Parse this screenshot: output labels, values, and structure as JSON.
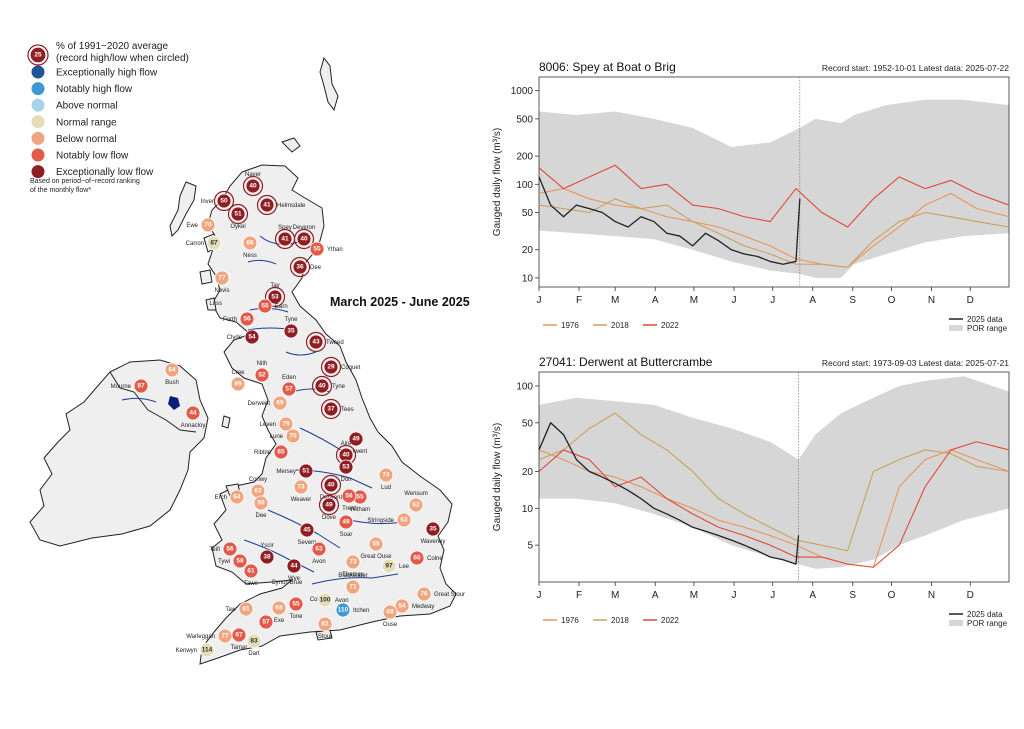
{
  "colors": {
    "exceptionally_high": "#1f5596",
    "notably_high": "#3d98d3",
    "above_normal": "#a8d3ea",
    "normal": "#e6ddb8",
    "below_normal": "#f1a57f",
    "notably_low": "#e35a4a",
    "exceptionally_low": "#8f1d22",
    "land": "#efefef",
    "river": "#1d3b93",
    "por": "#d6d6d6",
    "line_2025": "#222222",
    "line_1976": "#e9955a",
    "line_2018": "#c9a15e",
    "line_2022": "#e04a3a"
  },
  "map": {
    "title": "March 2025 - June 2025",
    "legend": {
      "pct_label_line1": "% of 1991−2020 average",
      "pct_label_line2": "(record high/low when circled)",
      "pct_badge": "25",
      "items": [
        {
          "key": "exceptionally_high",
          "label": "Exceptionally high flow"
        },
        {
          "key": "notably_high",
          "label": "Notably high flow"
        },
        {
          "key": "above_normal",
          "label": "Above normal"
        },
        {
          "key": "normal",
          "label": "Normal range"
        },
        {
          "key": "below_normal",
          "label": "Below normal"
        },
        {
          "key": "notably_low",
          "label": "Notably low flow"
        },
        {
          "key": "exceptionally_low",
          "label": "Exceptionally low flow"
        }
      ],
      "footnote_line1": "Based on period−of−record ranking",
      "footnote_line2": "of the monthly flow*"
    },
    "stations": [
      {
        "name": "Naver",
        "value": "40",
        "cls": "exceptionally_low",
        "rec": true
      },
      {
        "name": "Inver",
        "value": "50",
        "cls": "exceptionally_low",
        "rec": true
      },
      {
        "name": "Helmsdale",
        "value": "41",
        "cls": "exceptionally_low",
        "rec": true
      },
      {
        "name": "Oykel",
        "value": "51",
        "cls": "exceptionally_low",
        "rec": true
      },
      {
        "name": "Ewe",
        "value": "70",
        "cls": "below_normal",
        "rec": false
      },
      {
        "name": "Carron",
        "value": "87",
        "cls": "normal",
        "rec": false
      },
      {
        "name": "Spey",
        "value": "41",
        "cls": "exceptionally_low",
        "rec": true
      },
      {
        "name": "Deveron",
        "value": "40",
        "cls": "exceptionally_low",
        "rec": true
      },
      {
        "name": "Ythan",
        "value": "55",
        "cls": "notably_low",
        "rec": false
      },
      {
        "name": "Ness",
        "value": "66",
        "cls": "below_normal",
        "rec": false
      },
      {
        "name": "Dee",
        "value": "36",
        "cls": "exceptionally_low",
        "rec": true
      },
      {
        "name": "Nevis",
        "value": "77",
        "cls": "below_normal",
        "rec": false
      },
      {
        "name": "Tay",
        "value": "53",
        "cls": "exceptionally_low",
        "rec": true
      },
      {
        "name": "Luss",
        "value": "",
        "cls": "",
        "rec": false
      },
      {
        "name": "Forth",
        "value": "56",
        "cls": "notably_low",
        "rec": false
      },
      {
        "name": "Earn",
        "value": "55",
        "cls": "notably_low",
        "rec": false
      },
      {
        "name": "Tyne",
        "value": "35",
        "cls": "exceptionally_low",
        "rec": false
      },
      {
        "name": "Clyde",
        "value": "54",
        "cls": "exceptionally_low",
        "rec": false
      },
      {
        "name": "Tweed",
        "value": "43",
        "cls": "exceptionally_low",
        "rec": true
      },
      {
        "name": "Coquet",
        "value": "29",
        "cls": "exceptionally_low",
        "rec": true
      },
      {
        "name": "Tyne",
        "value": "40",
        "cls": "exceptionally_low",
        "rec": true
      },
      {
        "name": "Tees",
        "value": "37",
        "cls": "exceptionally_low",
        "rec": true
      },
      {
        "name": "Cree",
        "value": "69",
        "cls": "below_normal",
        "rec": false
      },
      {
        "name": "Nith",
        "value": "52",
        "cls": "notably_low",
        "rec": false
      },
      {
        "name": "Eden",
        "value": "57",
        "cls": "notably_low",
        "rec": false
      },
      {
        "name": "Derwent",
        "value": "69",
        "cls": "below_normal",
        "rec": false
      },
      {
        "name": "Mourne",
        "value": "87",
        "cls": "notably_low",
        "rec": false
      },
      {
        "name": "Bush",
        "value": "64",
        "cls": "below_normal",
        "rec": false
      },
      {
        "name": "Annacloy",
        "value": "44",
        "cls": "notably_low",
        "rec": false
      },
      {
        "name": "Leven",
        "value": "79",
        "cls": "below_normal",
        "rec": false
      },
      {
        "name": "Lune",
        "value": "70",
        "cls": "below_normal",
        "rec": false
      },
      {
        "name": "Ribble",
        "value": "65",
        "cls": "notably_low",
        "rec": false
      },
      {
        "name": "Derwent",
        "value": "49",
        "cls": "exceptionally_low",
        "rec": false
      },
      {
        "name": "Aire",
        "value": "40",
        "cls": "exceptionally_low",
        "rec": true
      },
      {
        "name": "Don",
        "value": "53",
        "cls": "exceptionally_low",
        "rec": false
      },
      {
        "name": "Mersey",
        "value": "51",
        "cls": "exceptionally_low",
        "rec": false
      },
      {
        "name": "Lud",
        "value": "74",
        "cls": "below_normal",
        "rec": false
      },
      {
        "name": "Derwent",
        "value": "40",
        "cls": "exceptionally_low",
        "rec": true
      },
      {
        "name": "Weaver",
        "value": "73",
        "cls": "below_normal",
        "rec": false
      },
      {
        "name": "Witham",
        "value": "55",
        "cls": "notably_low",
        "rec": false
      },
      {
        "name": "Wensum",
        "value": "62",
        "cls": "below_normal",
        "rec": false
      },
      {
        "name": "Conwy",
        "value": "63",
        "cls": "below_normal",
        "rec": false
      },
      {
        "name": "Erch",
        "value": "64",
        "cls": "below_normal",
        "rec": false
      },
      {
        "name": "Dee",
        "value": "59",
        "cls": "below_normal",
        "rec": false
      },
      {
        "name": "Dove",
        "value": "49",
        "cls": "exceptionally_low",
        "rec": true
      },
      {
        "name": "Trent",
        "value": "56",
        "cls": "notably_low",
        "rec": false
      },
      {
        "name": "Soar",
        "value": "49",
        "cls": "notably_low",
        "rec": false
      },
      {
        "name": "Stringside",
        "value": "63",
        "cls": "below_normal",
        "rec": false
      },
      {
        "name": "Waveney",
        "value": "35",
        "cls": "exceptionally_low",
        "rec": false
      },
      {
        "name": "Severn",
        "value": "45",
        "cls": "exceptionally_low",
        "rec": false
      },
      {
        "name": "Teifi",
        "value": "56",
        "cls": "notably_low",
        "rec": false
      },
      {
        "name": "Tywi",
        "value": "58",
        "cls": "notably_low",
        "rec": false
      },
      {
        "name": "Yscir",
        "value": "38",
        "cls": "exceptionally_low",
        "rec": false
      },
      {
        "name": "Avon",
        "value": "63",
        "cls": "notably_low",
        "rec": false
      },
      {
        "name": "Great Ouse",
        "value": "58",
        "cls": "below_normal",
        "rec": false
      },
      {
        "name": "Colne",
        "value": "60",
        "cls": "notably_low",
        "rec": false
      },
      {
        "name": "Tawe",
        "value": "61",
        "cls": "notably_low",
        "rec": false
      },
      {
        "name": "Wye",
        "value": "44",
        "cls": "exceptionally_low",
        "rec": false
      },
      {
        "name": "Coln",
        "value": "",
        "cls": "",
        "rec": false
      },
      {
        "name": "Thames",
        "value": "73",
        "cls": "below_normal",
        "rec": false
      },
      {
        "name": "Lee",
        "value": "97",
        "cls": "normal",
        "rec": false
      },
      {
        "name": "Cynon",
        "value": "",
        "cls": "",
        "rec": false
      },
      {
        "name": "Brue",
        "value": "",
        "cls": "",
        "rec": false
      },
      {
        "name": "Avon",
        "value": "100",
        "cls": "normal",
        "rec": false
      },
      {
        "name": "Blackwater",
        "value": "71",
        "cls": "below_normal",
        "rec": false
      },
      {
        "name": "Great Stour",
        "value": "76",
        "cls": "below_normal",
        "rec": false
      },
      {
        "name": "Taw",
        "value": "81",
        "cls": "below_normal",
        "rec": false
      },
      {
        "name": "Exe",
        "value": "68",
        "cls": "below_normal",
        "rec": false
      },
      {
        "name": "Tone",
        "value": "55",
        "cls": "notably_low",
        "rec": false
      },
      {
        "name": "Itchen",
        "value": "110",
        "cls": "notably_high",
        "rec": false
      },
      {
        "name": "Medway",
        "value": "54",
        "cls": "below_normal",
        "rec": false
      },
      {
        "name": "Ouse",
        "value": "68",
        "cls": "below_normal",
        "rec": false
      },
      {
        "name": "Warleggan",
        "value": "77",
        "cls": "below_normal",
        "rec": false
      },
      {
        "name": "Kenwyn",
        "value": "114",
        "cls": "normal",
        "rec": false
      },
      {
        "name": "Tamar",
        "value": "67",
        "cls": "notably_low",
        "rec": false
      },
      {
        "name": "Dart",
        "value": "83",
        "cls": "normal",
        "rec": false
      },
      {
        "name": "Stour",
        "value": "82",
        "cls": "below_normal",
        "rec": false
      },
      {
        "name": "",
        "value": "57",
        "cls": "notably_low",
        "rec": false
      }
    ]
  },
  "chart_data": [
    {
      "type": "line",
      "title": "8006: Spey at Boat o Brig",
      "record_info": "Record start: 1952-10-01 Latest data: 2025-07-22",
      "ylabel": "Gauged daily flow (m³/s)",
      "yscale": "log",
      "ylim": [
        8,
        1400
      ],
      "yticks": [
        10,
        20,
        50,
        100,
        200,
        500,
        1000
      ],
      "months": [
        "J",
        "F",
        "M",
        "A",
        "M",
        "J",
        "J",
        "A",
        "S",
        "O",
        "N",
        "D"
      ],
      "latest_day": 203,
      "legend_bottom": [
        "1976",
        "2018",
        "2022"
      ],
      "legend_right": [
        "2025 data",
        "POR range"
      ],
      "por_range": {
        "x": [
          1,
          30,
          60,
          90,
          120,
          150,
          180,
          203,
          215,
          235,
          245,
          270,
          300,
          330,
          365
        ],
        "lo": [
          32,
          30,
          28,
          26,
          20,
          15,
          12,
          11,
          10,
          10,
          14,
          18,
          24,
          28,
          30
        ],
        "hi": [
          600,
          550,
          600,
          500,
          400,
          250,
          280,
          400,
          500,
          450,
          550,
          700,
          800,
          800,
          700
        ]
      },
      "series": [
        {
          "name": "2025",
          "x": [
            1,
            10,
            20,
            30,
            40,
            50,
            60,
            70,
            80,
            90,
            100,
            110,
            120,
            130,
            140,
            150,
            160,
            170,
            180,
            190,
            200,
            203
          ],
          "y": [
            120,
            60,
            45,
            60,
            55,
            50,
            40,
            35,
            45,
            40,
            30,
            28,
            22,
            30,
            25,
            20,
            18,
            17,
            15,
            14,
            15,
            70
          ]
        },
        {
          "name": "1976",
          "x": [
            1,
            20,
            40,
            60,
            80,
            100,
            120,
            140,
            160,
            180,
            200,
            220,
            240,
            260,
            280,
            300,
            320,
            340,
            365
          ],
          "y": [
            80,
            90,
            70,
            60,
            55,
            45,
            40,
            35,
            28,
            22,
            16,
            14,
            13,
            22,
            35,
            60,
            80,
            55,
            45
          ]
        },
        {
          "name": "2018",
          "x": [
            1,
            20,
            40,
            60,
            80,
            100,
            120,
            140,
            160,
            180,
            200,
            220,
            240,
            260,
            280,
            300,
            320,
            340,
            365
          ],
          "y": [
            60,
            55,
            50,
            70,
            55,
            60,
            40,
            30,
            22,
            18,
            14,
            14,
            13,
            25,
            40,
            50,
            45,
            40,
            35
          ]
        },
        {
          "name": "2022",
          "x": [
            1,
            20,
            40,
            60,
            80,
            100,
            120,
            140,
            160,
            180,
            200,
            220,
            240,
            260,
            280,
            300,
            320,
            340,
            365
          ],
          "y": [
            150,
            90,
            120,
            160,
            90,
            100,
            60,
            55,
            45,
            40,
            90,
            50,
            35,
            70,
            120,
            90,
            110,
            80,
            60
          ]
        }
      ]
    },
    {
      "type": "line",
      "title": "27041: Derwent at Buttercrambe",
      "record_info": "Record start: 1973-09-03 Latest data: 2025-07-21",
      "ylabel": "Gauged daily flow (m³/s)",
      "yscale": "log",
      "ylim": [
        2.5,
        130
      ],
      "yticks": [
        5,
        10,
        20,
        50,
        100
      ],
      "months": [
        "J",
        "F",
        "M",
        "A",
        "M",
        "J",
        "J",
        "A",
        "S",
        "O",
        "N",
        "D"
      ],
      "latest_day": 202,
      "legend_bottom": [
        "1976",
        "2018",
        "2022"
      ],
      "legend_right": [
        "2025 data",
        "POR range"
      ],
      "por_range": {
        "x": [
          1,
          30,
          60,
          90,
          120,
          150,
          180,
          202,
          215,
          235,
          260,
          280,
          300,
          330,
          365
        ],
        "lo": [
          12,
          12,
          11,
          9,
          7,
          5,
          4,
          3.5,
          3.2,
          3.3,
          3.8,
          5,
          6,
          8,
          10
        ],
        "hi": [
          70,
          80,
          75,
          70,
          55,
          45,
          35,
          25,
          40,
          60,
          80,
          100,
          110,
          120,
          90
        ]
      },
      "series": [
        {
          "name": "2025",
          "x": [
            1,
            10,
            20,
            30,
            40,
            50,
            60,
            70,
            80,
            90,
            100,
            110,
            120,
            130,
            140,
            150,
            160,
            170,
            180,
            190,
            200,
            202
          ],
          "y": [
            30,
            50,
            40,
            25,
            20,
            18,
            16,
            14,
            12,
            10,
            9,
            8,
            7,
            6.5,
            6,
            5.5,
            5,
            4.5,
            4,
            3.8,
            3.5,
            6
          ]
        },
        {
          "name": "1976",
          "x": [
            1,
            20,
            40,
            60,
            80,
            100,
            120,
            140,
            160,
            180,
            200,
            220,
            240,
            260,
            280,
            300,
            320,
            340,
            365
          ],
          "y": [
            30,
            25,
            20,
            18,
            15,
            12,
            10,
            8,
            7,
            6,
            5,
            4,
            3.5,
            3.3,
            15,
            25,
            30,
            25,
            20
          ]
        },
        {
          "name": "2018",
          "x": [
            1,
            20,
            40,
            60,
            80,
            100,
            120,
            140,
            160,
            180,
            200,
            220,
            240,
            260,
            280,
            300,
            320,
            340,
            365
          ],
          "y": [
            25,
            30,
            45,
            60,
            40,
            30,
            20,
            12,
            9,
            7,
            5.5,
            5,
            4.5,
            20,
            25,
            30,
            28,
            22,
            20
          ]
        },
        {
          "name": "2022",
          "x": [
            1,
            20,
            40,
            60,
            80,
            100,
            120,
            140,
            160,
            180,
            200,
            220,
            240,
            260,
            280,
            300,
            320,
            340,
            365
          ],
          "y": [
            20,
            30,
            25,
            15,
            18,
            12,
            9,
            7,
            6,
            5,
            4,
            4,
            3.5,
            3.3,
            5,
            15,
            30,
            35,
            30
          ]
        }
      ]
    }
  ]
}
